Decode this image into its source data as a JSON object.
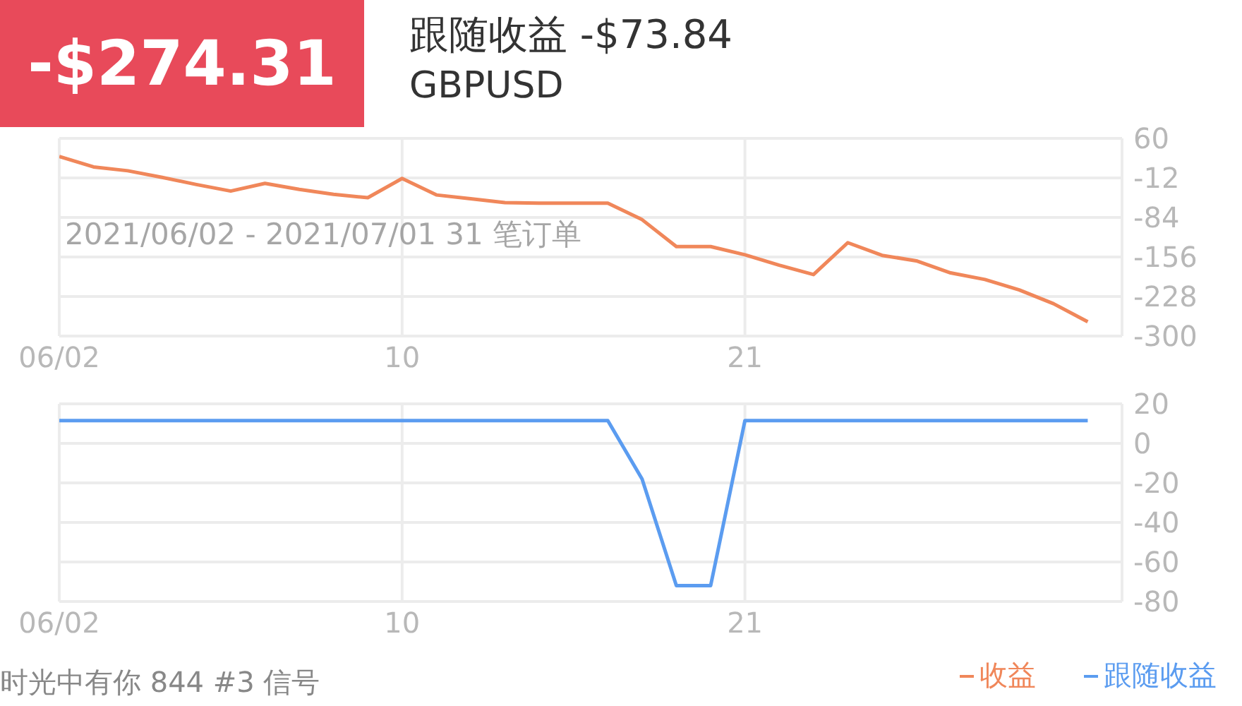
{
  "chart_data": [
    {
      "type": "line",
      "title": "跟随收益 -$73.84",
      "subtitle": "GBPUSD",
      "annotations": [
        "-$274.31",
        "2021/06/02 - 2021/07/01 31 笔订单",
        "时光中有你 844 #3 信号"
      ],
      "categories": [
        "06/02",
        null,
        null,
        null,
        null,
        null,
        null,
        null,
        null,
        null,
        "10",
        null,
        null,
        null,
        null,
        null,
        null,
        null,
        null,
        null,
        "21",
        null,
        null,
        null,
        null,
        null,
        null,
        null,
        null,
        null,
        null,
        null
      ],
      "series": [
        {
          "name": "收益",
          "color": "#f0875a",
          "values": [
            27,
            8,
            1,
            -11,
            -24,
            -36,
            -22,
            -33,
            -42,
            -48,
            -13,
            -43,
            -50,
            -57,
            -58,
            -58,
            -58,
            -88,
            -137,
            -137,
            -152,
            -171,
            -188,
            -130,
            -153,
            -163,
            -185,
            -197,
            -216,
            -241,
            -274,
            null
          ]
        }
      ],
      "ylim": [
        -300,
        60
      ],
      "yticks": [
        60,
        -12,
        -84,
        -156,
        -228,
        -300
      ],
      "grid": true,
      "legend": "bottom right",
      "marker": "none",
      "line_style": "solid"
    },
    {
      "type": "line",
      "categories": [
        "06/02",
        null,
        null,
        null,
        null,
        null,
        null,
        null,
        null,
        null,
        "10",
        null,
        null,
        null,
        null,
        null,
        null,
        null,
        null,
        null,
        "21",
        null,
        null,
        null,
        null,
        null,
        null,
        null,
        null,
        null,
        null,
        null
      ],
      "series": [
        {
          "name": "跟随收益",
          "color": "#5b9cf0",
          "values": [
            11.5,
            11.5,
            11.5,
            11.5,
            11.5,
            11.5,
            11.5,
            11.5,
            11.5,
            11.5,
            11.5,
            11.5,
            11.5,
            11.5,
            11.5,
            11.5,
            11.5,
            -18,
            -72,
            -72,
            11.5,
            11.5,
            11.5,
            11.5,
            11.5,
            11.5,
            11.5,
            11.5,
            11.5,
            11.5,
            11.5,
            null
          ]
        }
      ],
      "ylim": [
        -80,
        20
      ],
      "yticks": [
        20,
        0,
        -20,
        -40,
        -60,
        -80
      ],
      "grid": true,
      "legend": "bottom right",
      "marker": "none",
      "line_style": "solid"
    }
  ]
}
